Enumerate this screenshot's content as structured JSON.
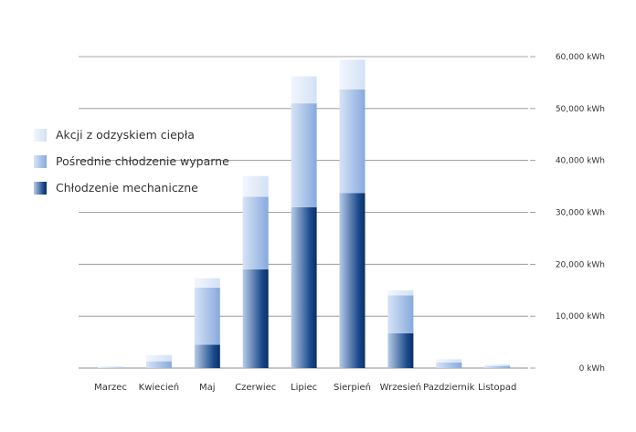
{
  "chart_data": {
    "type": "bar",
    "stacked": true,
    "categories": [
      "Marzec",
      "Kwiecień",
      "Maj",
      "Czerwiec",
      "Lipiec",
      "Sierpień",
      "Wrzesień",
      "Pazdziernik",
      "Listopad"
    ],
    "series": [
      {
        "name": "Chłodzenie mechaniczne",
        "values": [
          0,
          0,
          4500,
          19000,
          31000,
          33700,
          6700,
          0,
          0
        ],
        "color": "#0d3a78"
      },
      {
        "name": "Pośrednie chłodzenie wyparne",
        "values": [
          100,
          1300,
          11000,
          14000,
          20000,
          20000,
          7300,
          1100,
          400
        ],
        "color": "#8fb2e2"
      },
      {
        "name": "Akcji z odzyskiem ciepła",
        "values": [
          200,
          1200,
          1800,
          4000,
          5200,
          5700,
          1000,
          600,
          300
        ],
        "color": "#dbe7f8"
      }
    ],
    "yticks": [
      "0 kWh",
      "10,000 kWh",
      "20,000 kWh",
      "30,000 kWh",
      "40,000 kWh",
      "50,000 kWh",
      "60,000 kWh"
    ],
    "ylim": [
      0,
      60000
    ],
    "y_axis_side": "right",
    "grid": true,
    "legend_position": "left"
  }
}
